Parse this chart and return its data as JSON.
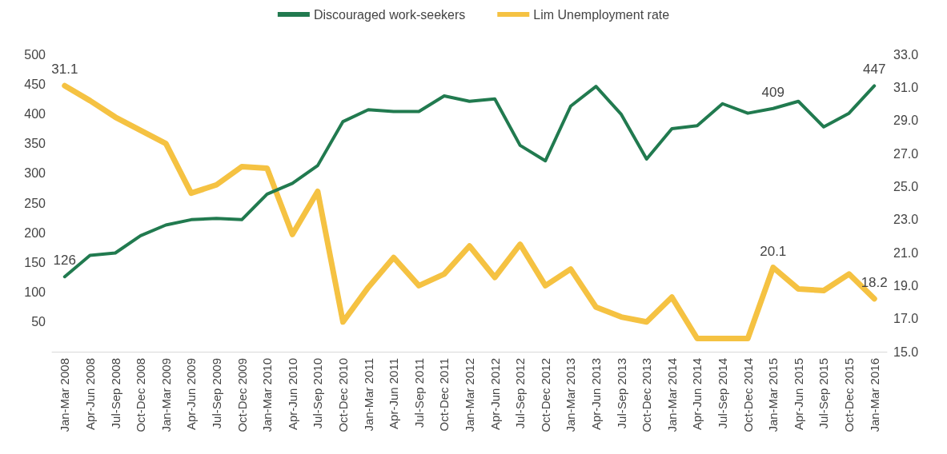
{
  "chart_data": {
    "type": "line",
    "categories": [
      "Jan-Mar 2008",
      "Apr-Jun 2008",
      "Jul-Sep 2008",
      "Oct-Dec 2008",
      "Jan-Mar 2009",
      "Apr-Jun 2009",
      "Jul-Sep 2009",
      "Oct-Dec 2009",
      "Jan-Mar 2010",
      "Apr-Jun 2010",
      "Jul-Sep 2010",
      "Oct-Dec 2010",
      "Jan-Mar 2011",
      "Apr-Jun 2011",
      "Jul-Sep 2011",
      "Oct-Dec 2011",
      "Jan-Mar 2012",
      "Apr-Jun 2012",
      "Jul-Sep 2012",
      "Oct-Dec 2012",
      "Jan-Mar 2013",
      "Apr-Jun 2013",
      "Jul-Sep 2013",
      "Oct-Dec 2013",
      "Jan-Mar 2014",
      "Apr-Jun 2014",
      "Jul-Sep 2014",
      "Oct-Dec 2014",
      "Jan-Mar 2015",
      "Apr-Jun 2015",
      "Jul-Sep 2015",
      "Oct-Dec 2015",
      "Jan-Mar 2016"
    ],
    "series": [
      {
        "name": "Discouraged work-seekers",
        "color": "#217a4f",
        "values": [
          126,
          162,
          166,
          195,
          213,
          222,
          224,
          222,
          265,
          283,
          313,
          387,
          407,
          404,
          404,
          430,
          421,
          425,
          347,
          321,
          413,
          446,
          399,
          324,
          375,
          380,
          417,
          401,
          409,
          421,
          378,
          401,
          447
        ],
        "value_labels": [
          "126",
          null,
          null,
          null,
          null,
          null,
          null,
          null,
          null,
          null,
          null,
          null,
          null,
          null,
          null,
          null,
          null,
          null,
          null,
          null,
          null,
          null,
          null,
          null,
          null,
          null,
          null,
          null,
          "409",
          null,
          null,
          null,
          "447"
        ]
      },
      {
        "name": "Lim Unemployment rate",
        "color": "#f5c242",
        "axis": "y2",
        "values": [
          31.1,
          30.2,
          29.2,
          28.4,
          27.6,
          24.6,
          25.1,
          26.2,
          26.1,
          22.1,
          24.7,
          16.8,
          18.9,
          20.7,
          19.0,
          19.7,
          21.4,
          19.5,
          21.5,
          19.0,
          20.0,
          17.7,
          17.1,
          16.8,
          18.3,
          15.8,
          15.8,
          15.8,
          20.1,
          18.8,
          18.7,
          19.7,
          18.2
        ],
        "value_labels": [
          "31.1",
          null,
          null,
          null,
          null,
          null,
          null,
          null,
          null,
          null,
          null,
          null,
          null,
          null,
          null,
          null,
          null,
          null,
          null,
          null,
          null,
          null,
          null,
          null,
          null,
          null,
          null,
          null,
          "20.1",
          null,
          null,
          null,
          "18.2"
        ]
      }
    ],
    "ylim": [
      0,
      500
    ],
    "yticks": [
      50,
      100,
      150,
      200,
      250,
      300,
      350,
      400,
      450,
      500
    ],
    "y2lim": [
      15,
      33
    ],
    "y2ticks": [
      {
        "value": 15,
        "label": "15.0"
      },
      {
        "value": 17,
        "label": "17.0"
      },
      {
        "value": 19,
        "label": "19.0"
      },
      {
        "value": 21,
        "label": "21.0"
      },
      {
        "value": 23,
        "label": "23.0"
      },
      {
        "value": 25,
        "label": "25.0"
      },
      {
        "value": 27,
        "label": "27.0"
      },
      {
        "value": 29,
        "label": "29.0"
      },
      {
        "value": 31,
        "label": "31.0"
      },
      {
        "value": 33,
        "label": "33.0"
      }
    ],
    "grid": false,
    "legend": "top",
    "marker": "none",
    "line_style": "solid"
  }
}
